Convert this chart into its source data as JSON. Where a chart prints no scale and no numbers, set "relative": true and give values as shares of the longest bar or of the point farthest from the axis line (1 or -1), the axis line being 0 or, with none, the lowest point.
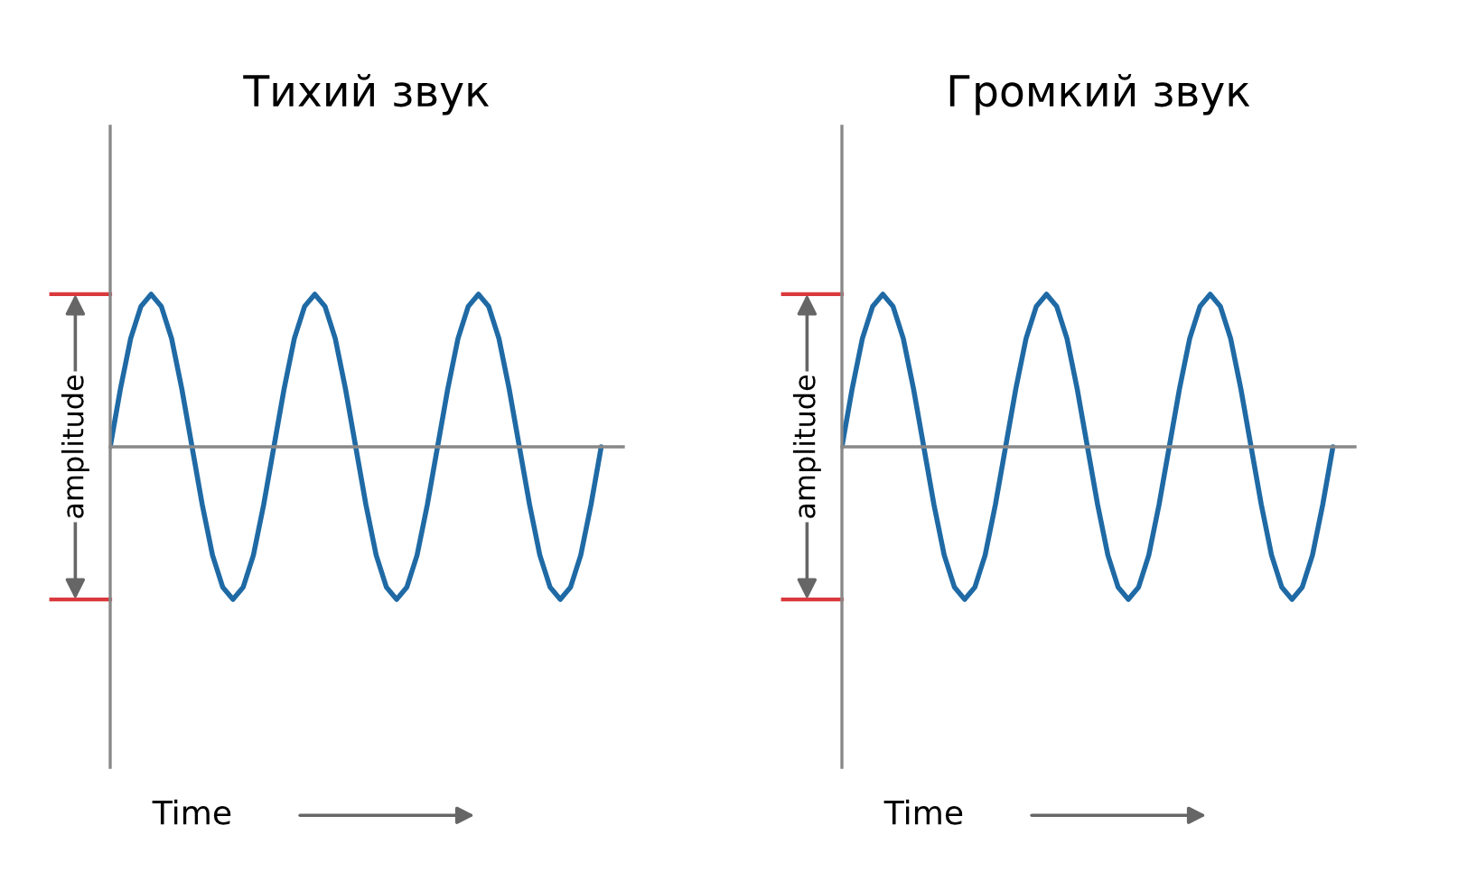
{
  "chart_data": [
    {
      "type": "line",
      "title": "Тихий звук",
      "relative": true,
      "legend": false,
      "marker": "none",
      "line_style": "solid",
      "categories": [
        null,
        null,
        null,
        null,
        null,
        null,
        null,
        null,
        null,
        null,
        null,
        null,
        null,
        null,
        null,
        null,
        null,
        null,
        null,
        null,
        null,
        null,
        null,
        null,
        null,
        null,
        null,
        null,
        null,
        null,
        null,
        null,
        null,
        null,
        null,
        null,
        null,
        null,
        null,
        null,
        null,
        null,
        null,
        null,
        null,
        null,
        null,
        null,
        null
      ],
      "series": [
        {
          "color": "#1f6aa5",
          "values": [
            0,
            0.38,
            0.71,
            0.92,
            1,
            0.92,
            0.71,
            0.38,
            0,
            -0.38,
            -0.71,
            -0.92,
            -1,
            -0.92,
            -0.71,
            -0.38,
            0,
            0.38,
            0.71,
            0.92,
            1,
            0.92,
            0.71,
            0.38,
            0,
            -0.38,
            -0.71,
            -0.92,
            -1,
            -0.92,
            -0.71,
            -0.38,
            0,
            0.38,
            0.71,
            0.92,
            1,
            0.92,
            0.71,
            0.38,
            0,
            -0.38,
            -0.71,
            -0.92,
            -1,
            -0.92,
            -0.71,
            -0.38,
            0
          ]
        }
      ],
      "annotations": [
        "amplitude",
        "Time"
      ]
    },
    {
      "type": "line",
      "title": "Громкий звук",
      "relative": true,
      "legend": false,
      "marker": "none",
      "line_style": "solid",
      "categories": [
        null,
        null,
        null,
        null,
        null,
        null,
        null,
        null,
        null,
        null,
        null,
        null,
        null,
        null,
        null,
        null,
        null,
        null,
        null,
        null,
        null,
        null,
        null,
        null,
        null,
        null,
        null,
        null,
        null,
        null,
        null,
        null,
        null,
        null,
        null,
        null,
        null,
        null,
        null,
        null,
        null,
        null,
        null,
        null,
        null,
        null,
        null,
        null,
        null
      ],
      "series": [
        {
          "color": "#1f6aa5",
          "values": [
            0,
            0.38,
            0.71,
            0.92,
            1,
            0.92,
            0.71,
            0.38,
            0,
            -0.38,
            -0.71,
            -0.92,
            -1,
            -0.92,
            -0.71,
            -0.38,
            0,
            0.38,
            0.71,
            0.92,
            1,
            0.92,
            0.71,
            0.38,
            0,
            -0.38,
            -0.71,
            -0.92,
            -1,
            -0.92,
            -0.71,
            -0.38,
            0,
            0.38,
            0.71,
            0.92,
            1,
            0.92,
            0.71,
            0.38,
            0,
            -0.38,
            -0.71,
            -0.92,
            -1,
            -0.92,
            -0.71,
            -0.38,
            0
          ]
        }
      ],
      "annotations": [
        "amplitude",
        "Time"
      ]
    }
  ]
}
